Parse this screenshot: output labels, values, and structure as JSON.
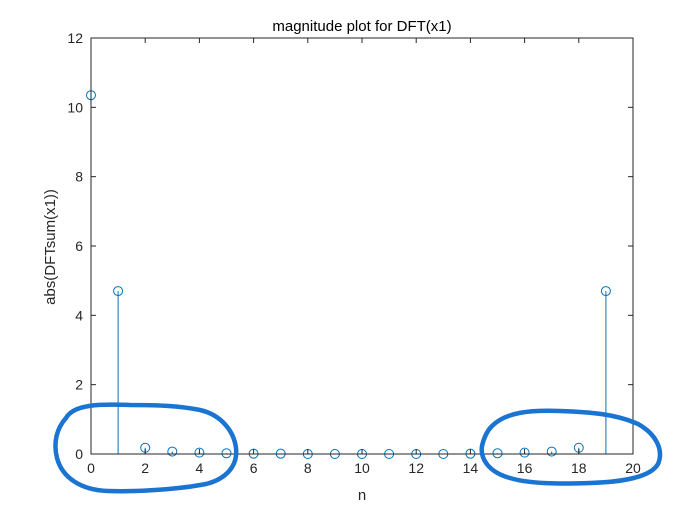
{
  "chart_data": {
    "type": "stem",
    "title": "magnitude plot for DFT(x1)",
    "xlabel": "n",
    "ylabel": "abs(DFTsum(x1))",
    "xlim": [
      0,
      20
    ],
    "ylim": [
      0,
      12
    ],
    "xticks": [
      "0",
      "2",
      "4",
      "6",
      "8",
      "10",
      "12",
      "14",
      "16",
      "18",
      "20"
    ],
    "yticks": [
      "0",
      "2",
      "4",
      "6",
      "8",
      "10",
      "12"
    ],
    "grid": false,
    "series": [
      {
        "x": [
          0,
          1,
          2,
          3,
          4,
          5,
          6,
          7,
          8,
          9,
          10,
          11,
          12,
          13,
          14,
          15,
          16,
          17,
          18,
          19
        ],
        "y": [
          10.35,
          4.7,
          0.18,
          0.07,
          0.04,
          0.02,
          0.01,
          0.01,
          0.0,
          0.0,
          0.0,
          0.0,
          0.0,
          0.0,
          0.01,
          0.02,
          0.04,
          0.07,
          0.18,
          4.7
        ],
        "color": "#0072BD"
      }
    ],
    "annotations": [
      {
        "type": "hand-drawn-circle",
        "color": "#1A74D2",
        "encloses_x": [
          2,
          5
        ]
      },
      {
        "type": "hand-drawn-circle",
        "color": "#1A74D2",
        "encloses_x": [
          15,
          18
        ]
      }
    ]
  }
}
